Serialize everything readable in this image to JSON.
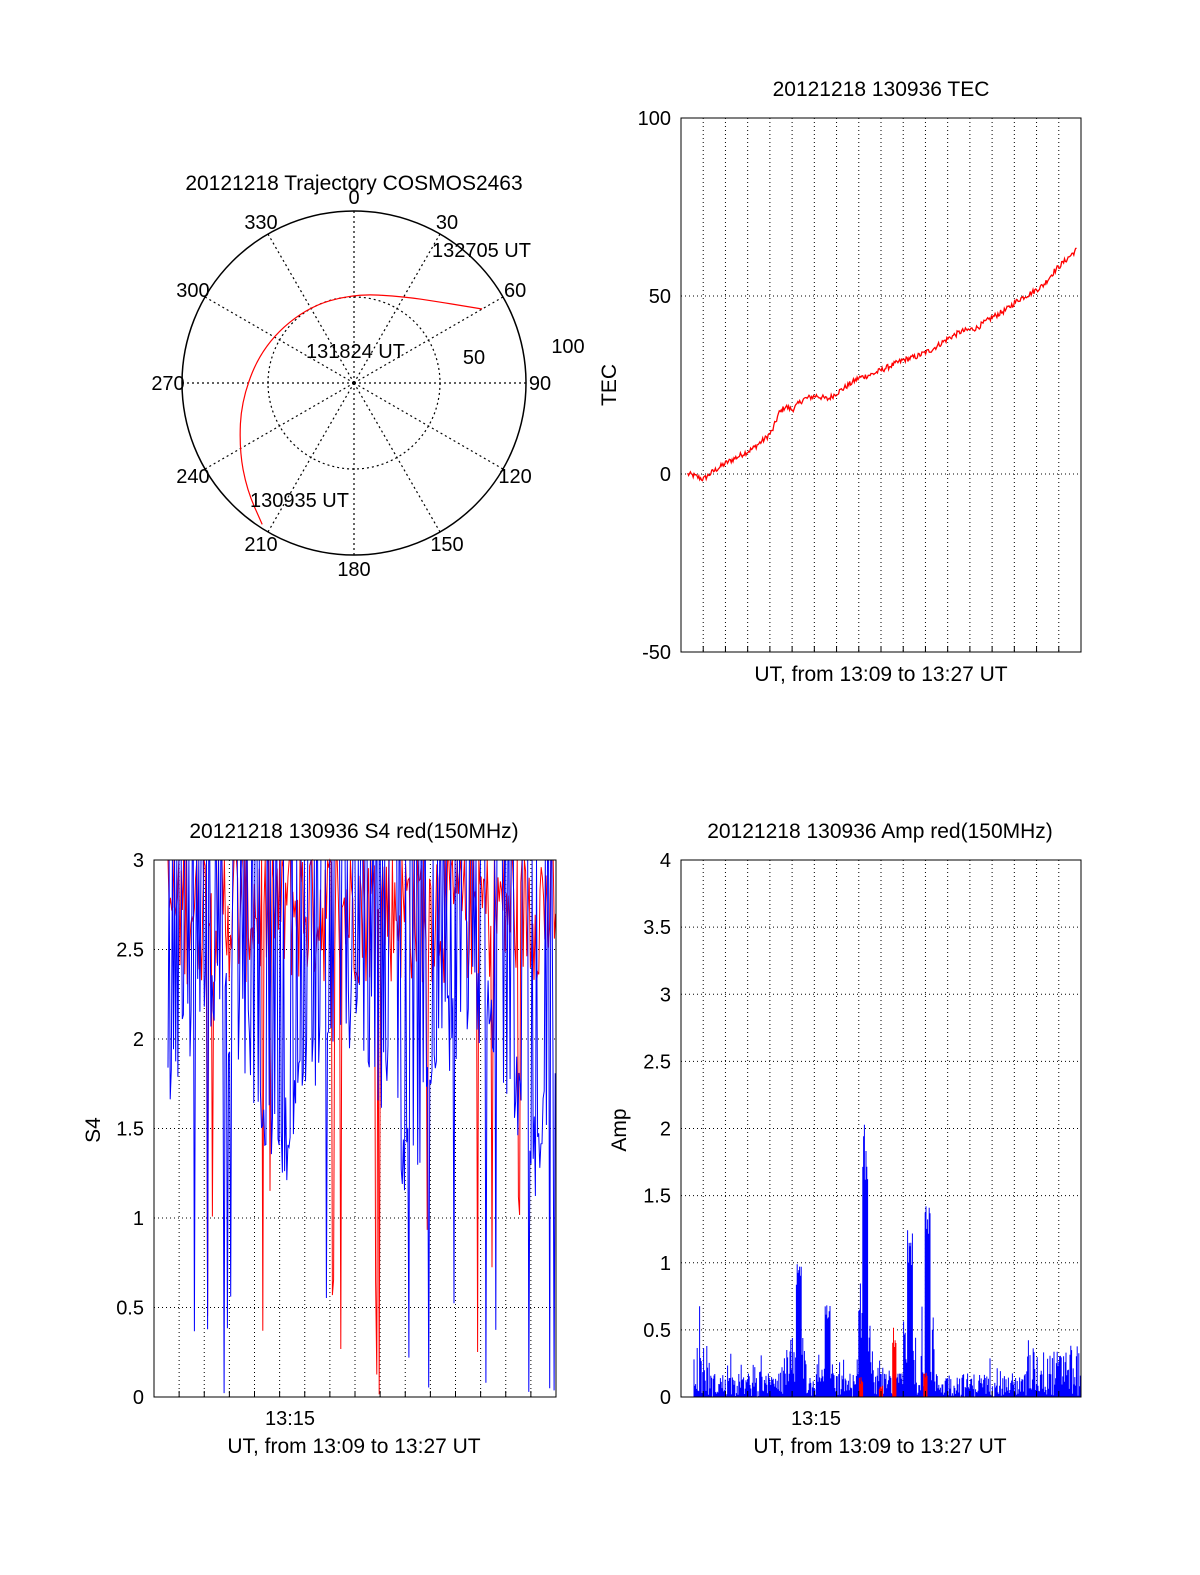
{
  "chart_data": [
    {
      "type": "polar",
      "title": "20121218 Trajectory COSMOS2463",
      "azimuth_labels": [
        "0",
        "30",
        "60",
        "90",
        "120",
        "150",
        "180",
        "210",
        "240",
        "270",
        "300",
        "330"
      ],
      "radius_labels": [
        "50",
        "100"
      ],
      "track_color": "#ff0000",
      "track_start_label": "130935 UT",
      "track_mid_label": "131824 UT",
      "track_end_label": "132705 UT",
      "track": [
        {
          "az": 213,
          "zd": 98
        },
        {
          "az": 225,
          "zd": 88
        },
        {
          "az": 240,
          "zd": 77
        },
        {
          "az": 262,
          "zd": 66
        },
        {
          "az": 292,
          "zd": 57
        },
        {
          "az": 327,
          "zd": 52
        },
        {
          "az": 360,
          "zd": 52
        },
        {
          "az": 390,
          "zd": 58
        },
        {
          "az": 406,
          "zd": 68
        },
        {
          "az": 415,
          "zd": 78
        },
        {
          "az": 420,
          "zd": 86
        }
      ]
    },
    {
      "type": "line",
      "title": "20121218 130936 TEC",
      "xlabel": "UT, from 13:09 to 13:27 UT",
      "ylabel": "TEC",
      "ylim": [
        -50,
        100
      ],
      "yticks": [
        "100",
        "50",
        "0",
        "-50"
      ],
      "x_range_min": [
        0,
        18
      ],
      "grid": true,
      "color": "#ff0000",
      "series": [
        {
          "x": [
            0.3,
            0.6,
            1.0,
            1.4,
            2.0,
            2.6,
            3.2,
            3.8,
            4.1,
            4.4,
            4.7,
            5.0,
            5.5,
            6.1,
            6.6,
            7.3,
            8.0,
            8.6,
            9.3,
            10.0,
            10.6,
            11.3,
            12.0,
            12.6,
            13.3,
            14.0,
            14.6,
            15.2,
            15.8,
            16.3,
            16.8,
            17.3,
            17.8
          ],
          "y": [
            0,
            -0.5,
            -1.5,
            0.5,
            3,
            5,
            7,
            10,
            12,
            17,
            19,
            18,
            21,
            22,
            21,
            24,
            27,
            28,
            30,
            32,
            33,
            35,
            38,
            40,
            41,
            44,
            46,
            49,
            51,
            53,
            57,
            60,
            63
          ]
        }
      ]
    },
    {
      "type": "line",
      "title": "20121218 130936 S4 red(150MHz)",
      "xlabel": "UT, from 13:09 to 13:27 UT",
      "ylabel": "S4",
      "ylim": [
        0,
        3
      ],
      "yticks": [
        "3",
        "2.5",
        "2",
        "1.5",
        "1",
        "0.5",
        "0"
      ],
      "xtick_label": "13:15",
      "grid": true,
      "series": [
        {
          "name": "red",
          "color": "#ff0000"
        },
        {
          "name": "blue",
          "color": "#0000ff"
        }
      ]
    },
    {
      "type": "bar",
      "title": "20121218 130936 Amp red(150MHz)",
      "xlabel": "UT, from 13:09 to 13:27 UT",
      "ylabel": "Amp",
      "ylim": [
        0,
        4
      ],
      "yticks": [
        "4",
        "3.5",
        "3",
        "2.5",
        "2",
        "1.5",
        "1",
        "0.5",
        "0"
      ],
      "xtick_label": "13:15",
      "grid": true,
      "peaks": [
        {
          "x": 5.3,
          "y": 1.0
        },
        {
          "x": 6.6,
          "y": 0.7
        },
        {
          "x": 8.3,
          "y": 2.05
        },
        {
          "x": 10.3,
          "y": 1.25
        },
        {
          "x": 11.1,
          "y": 1.62
        }
      ],
      "series": [
        {
          "name": "blue",
          "color": "#0000ff"
        },
        {
          "name": "red",
          "color": "#ff0000"
        }
      ]
    }
  ]
}
